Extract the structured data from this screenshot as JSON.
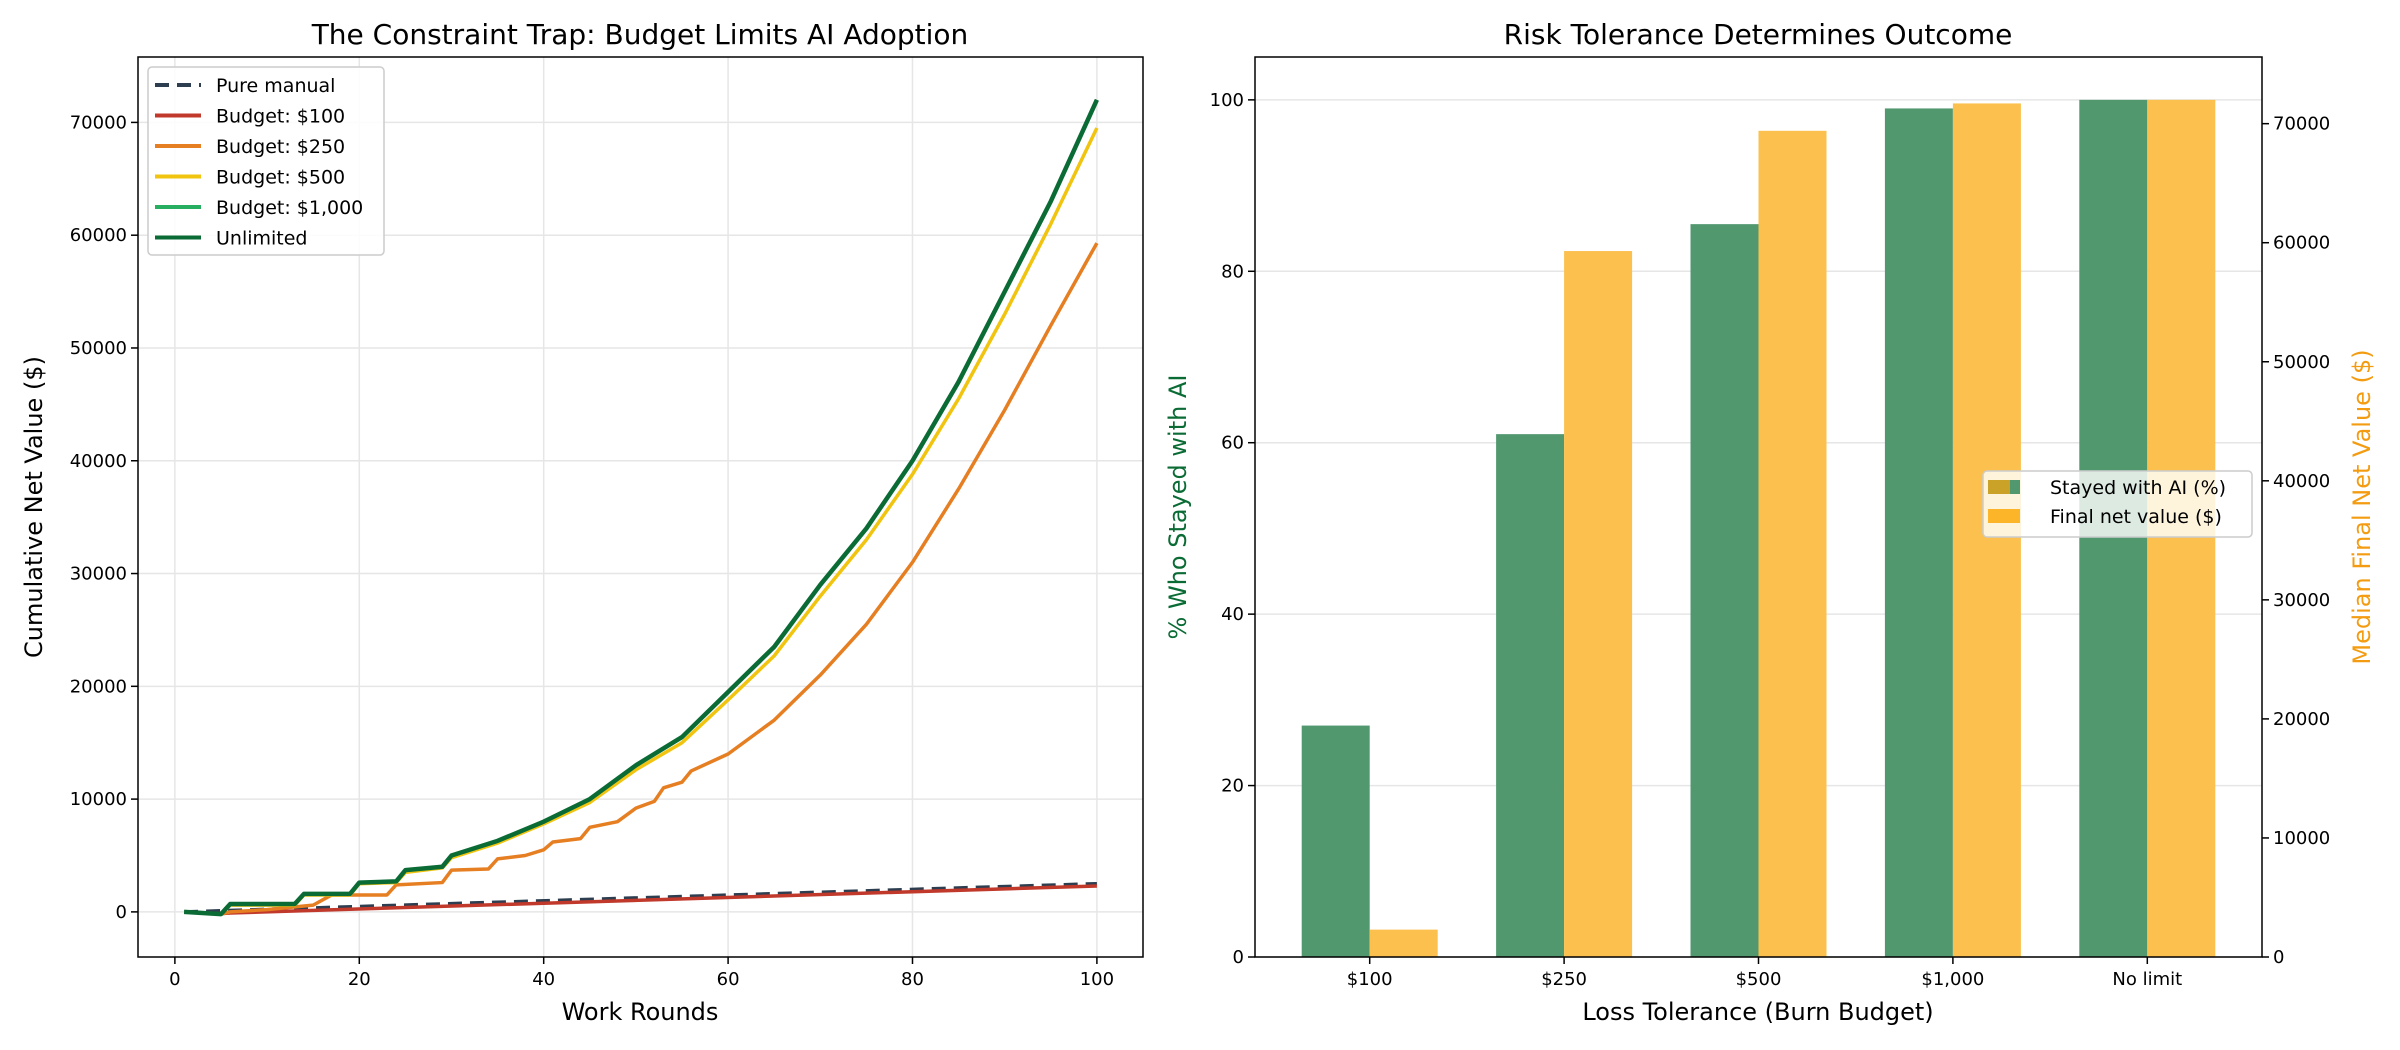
{
  "chart_data": [
    {
      "type": "line",
      "title": "The Constraint Trap: Budget Limits AI Adoption",
      "xlabel": "Work Rounds",
      "ylabel": "Cumulative Net Value ($)",
      "xlim": [
        -4,
        105
      ],
      "ylim": [
        -4000,
        75800
      ],
      "xticks": [
        0,
        20,
        40,
        60,
        80,
        100
      ],
      "yticks": [
        0,
        10000,
        20000,
        30000,
        40000,
        50000,
        60000,
        70000
      ],
      "grid": true,
      "legend_position": "top-left",
      "series": [
        {
          "name": "Pure manual",
          "color": "#2c3e50",
          "dashed": true,
          "x": [
            1,
            100
          ],
          "y": [
            0,
            2500
          ]
        },
        {
          "name": "Budget: $100",
          "color": "#c0392b",
          "x": [
            1,
            5,
            6,
            100
          ],
          "y": [
            0,
            -150,
            -100,
            2300
          ]
        },
        {
          "name": "Budget: $250",
          "color": "#e67e22",
          "x": [
            1,
            5,
            6,
            10,
            15,
            17,
            20,
            23,
            24,
            29,
            30,
            34,
            35,
            38,
            40,
            41,
            44,
            45,
            48,
            50,
            52,
            53,
            55,
            56,
            60,
            65,
            70,
            75,
            80,
            85,
            90,
            95,
            100
          ],
          "y": [
            0,
            -200,
            0,
            200,
            600,
            1500,
            1500,
            1500,
            2400,
            2600,
            3700,
            3800,
            4700,
            5000,
            5500,
            6200,
            6500,
            7500,
            8000,
            9200,
            9800,
            11000,
            11500,
            12500,
            14000,
            17000,
            21000,
            25500,
            31000,
            37500,
            44500,
            52000,
            59300
          ]
        },
        {
          "name": "Budget: $500",
          "color": "#f1c40f",
          "x": [
            1,
            5,
            6,
            10,
            13,
            14,
            19,
            20,
            24,
            25,
            29,
            30,
            35,
            40,
            45,
            50,
            55,
            60,
            65,
            70,
            75,
            80,
            85,
            90,
            95,
            100
          ],
          "y": [
            0,
            -200,
            600,
            600,
            600,
            1500,
            1500,
            2500,
            2600,
            3500,
            3900,
            4800,
            6100,
            7800,
            9700,
            12600,
            15000,
            18800,
            22700,
            28000,
            33000,
            38800,
            45500,
            53000,
            61000,
            69500
          ]
        },
        {
          "name": "Budget: $1,000",
          "color": "#27ae60",
          "x": [
            1,
            5,
            6,
            10,
            13,
            14,
            19,
            20,
            24,
            25,
            29,
            30,
            35,
            40,
            45,
            50,
            55,
            60,
            65,
            70,
            75,
            80,
            85,
            90,
            95,
            100
          ],
          "y": [
            0,
            -200,
            700,
            700,
            700,
            1600,
            1600,
            2600,
            2700,
            3700,
            4000,
            5000,
            6300,
            8000,
            10000,
            13000,
            15500,
            19500,
            23500,
            29000,
            34000,
            40000,
            47000,
            55000,
            63000,
            72000
          ]
        },
        {
          "name": "Unlimited",
          "color": "#0b6b35",
          "x": [
            1,
            5,
            6,
            10,
            13,
            14,
            19,
            20,
            24,
            25,
            29,
            30,
            35,
            40,
            45,
            50,
            55,
            60,
            65,
            70,
            75,
            80,
            85,
            90,
            95,
            100
          ],
          "y": [
            0,
            -200,
            700,
            700,
            700,
            1600,
            1600,
            2600,
            2700,
            3700,
            4000,
            5000,
            6300,
            8000,
            10000,
            13000,
            15500,
            19500,
            23500,
            29000,
            34000,
            40000,
            47000,
            55000,
            63000,
            72000
          ]
        }
      ]
    },
    {
      "type": "bar",
      "title": "Risk Tolerance Determines Outcome",
      "xlabel": "Loss Tolerance (Burn Budget)",
      "ylabel": "% Who Stayed with AI",
      "ylabel_right": "Median Final Net Value ($)",
      "categories": [
        "$100",
        "$250",
        "$500",
        "$1,000",
        "No limit"
      ],
      "ylim": [
        0,
        105
      ],
      "ylim_right": [
        0,
        75600
      ],
      "yticks": [
        0,
        20,
        40,
        60,
        80,
        100
      ],
      "yticks_right": [
        0,
        10000,
        20000,
        30000,
        40000,
        50000,
        60000,
        70000
      ],
      "grid": true,
      "legend_position": "center-right",
      "ylabel_color": "#0b6b35",
      "ylabel_right_color": "#f39c12",
      "series": [
        {
          "name": "Stayed with AI (%)",
          "axis": "left",
          "color": "#52986f",
          "values": [
            27,
            61,
            85.5,
            99,
            100
          ]
        },
        {
          "name": "Final net value ($)",
          "axis": "right",
          "color": "#fbc04d",
          "values": [
            2300,
            59300,
            69400,
            71700,
            72000
          ]
        }
      ]
    }
  ]
}
